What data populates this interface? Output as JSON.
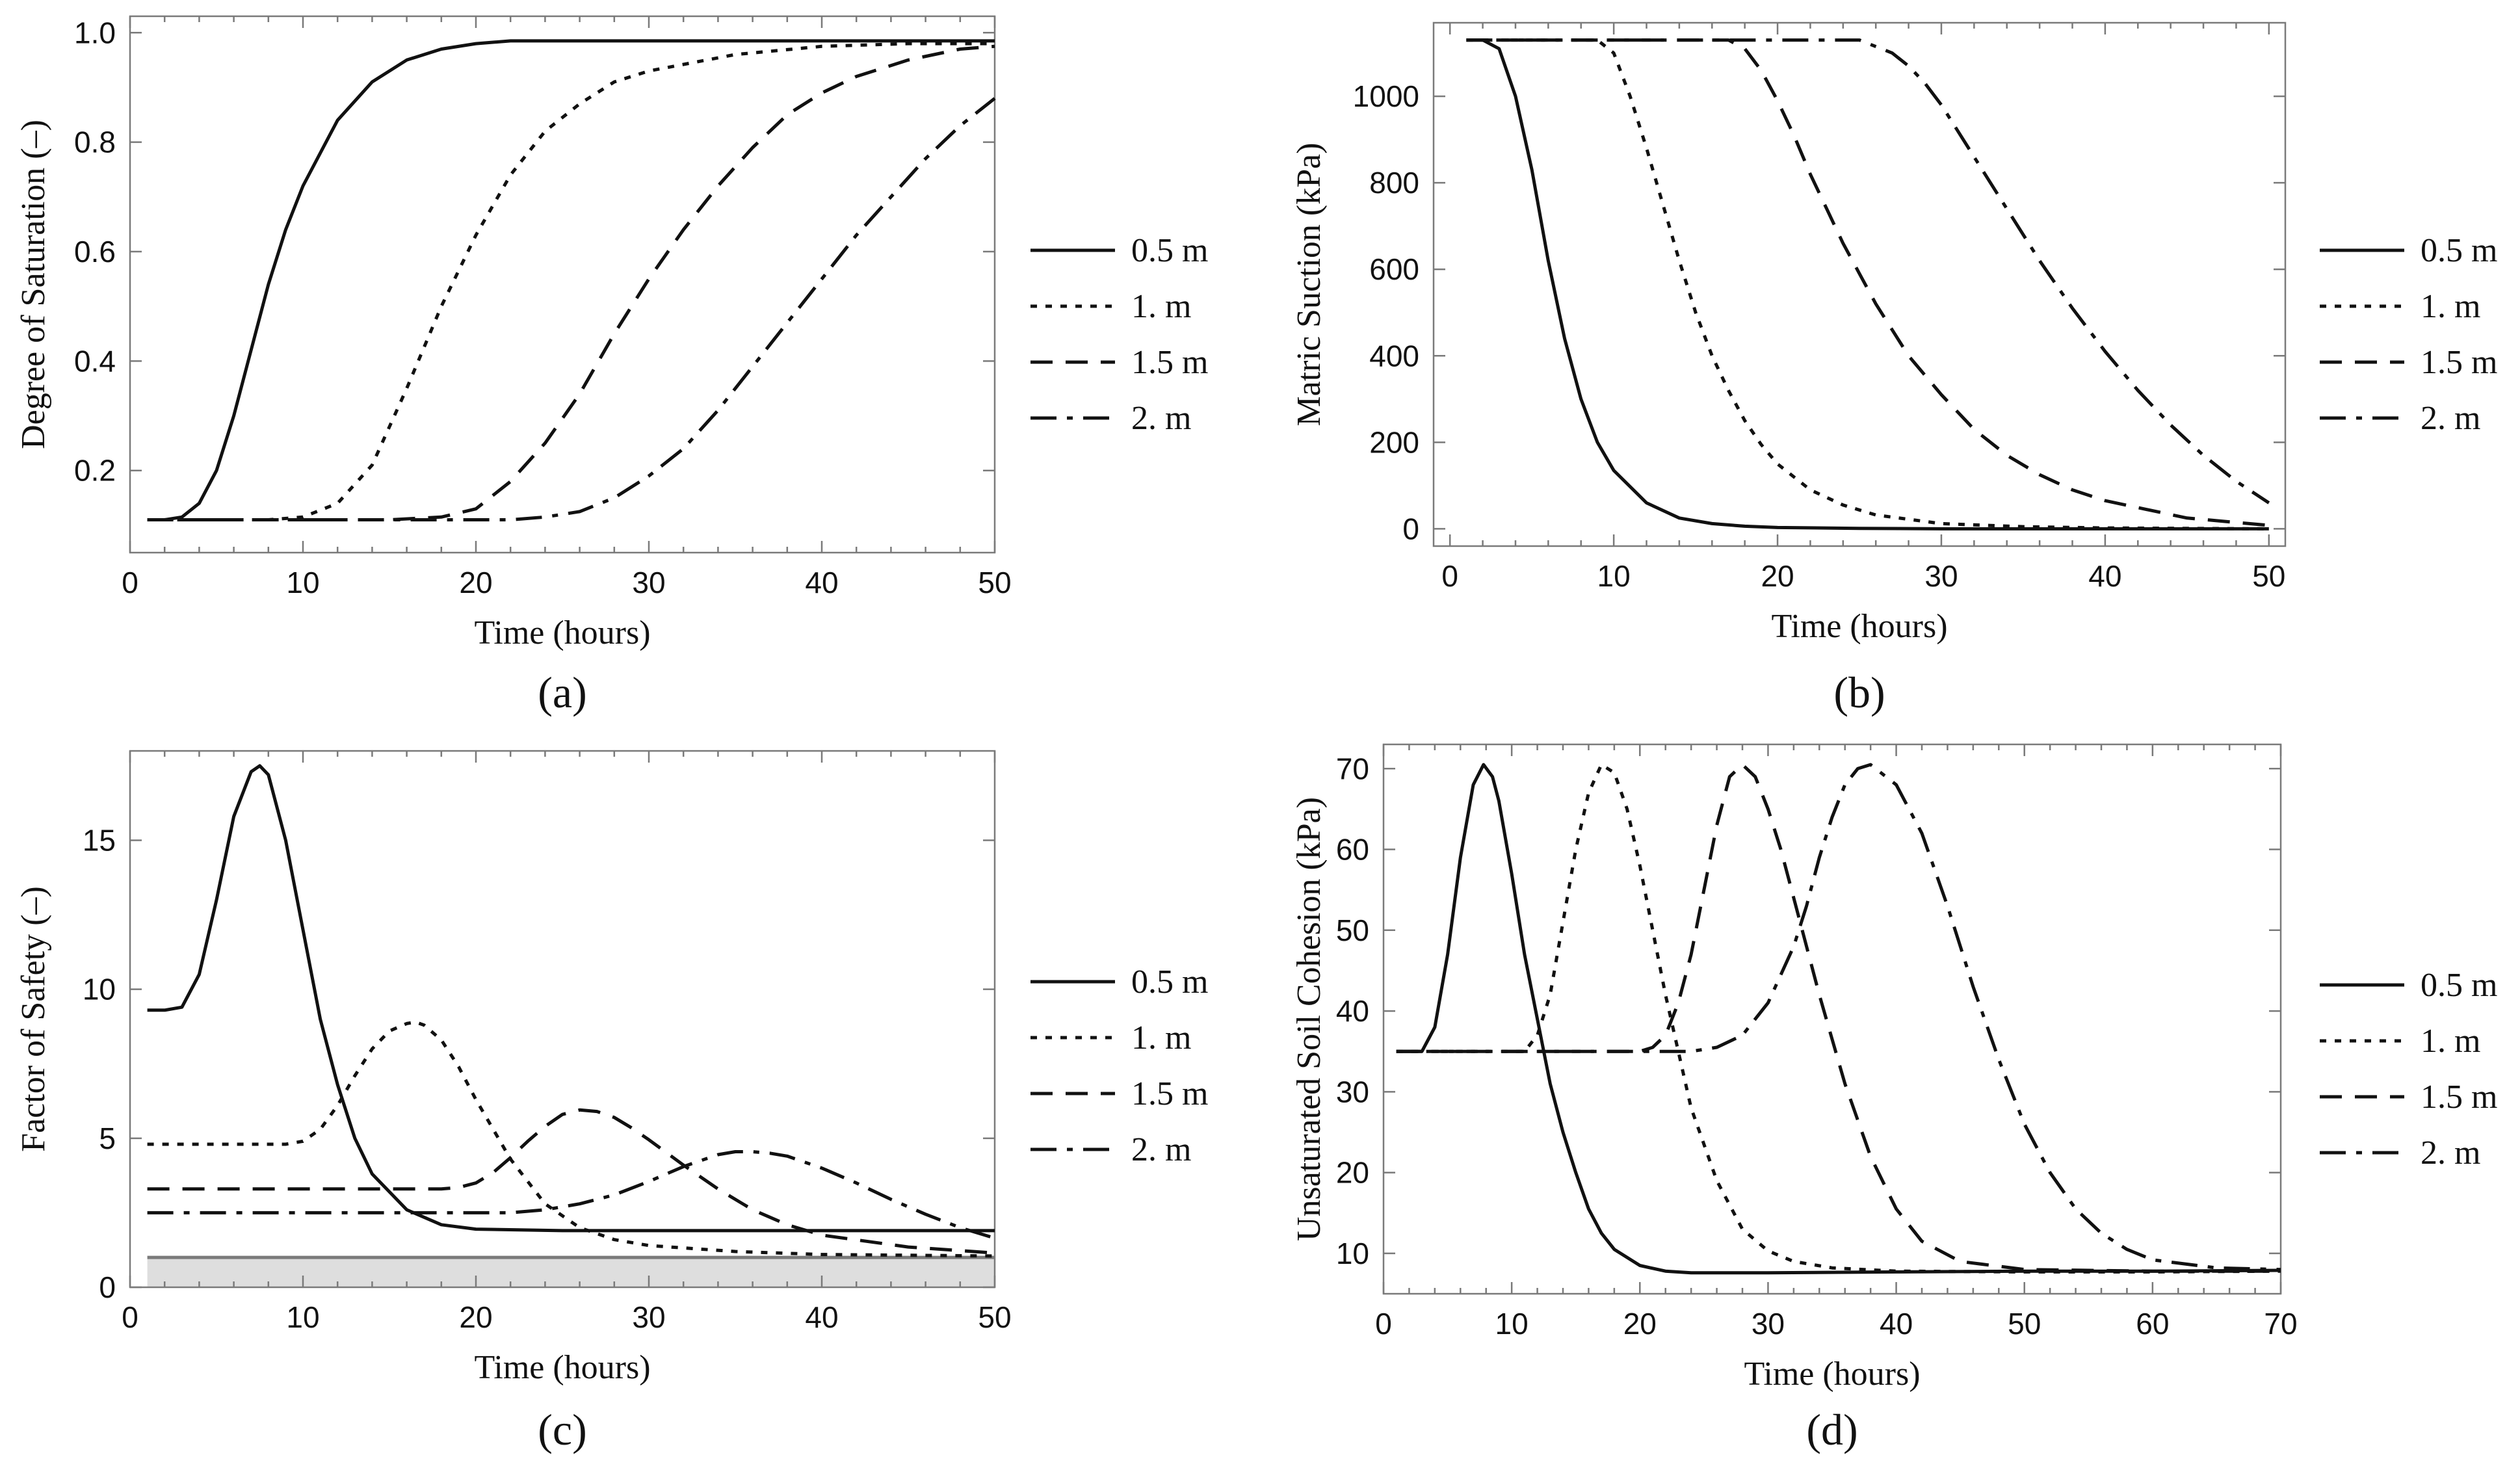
{
  "chart_data": [
    {
      "type": "line",
      "panel_label": "(a)",
      "xlabel": "Time (hours)",
      "ylabel": "Degree of Saturation (–)",
      "xlim": [
        0,
        50
      ],
      "ylim": [
        0.05,
        1.03
      ],
      "x_ticks": [
        "0",
        "10",
        "20",
        "30",
        "40",
        "50"
      ],
      "y_ticks": [
        {
          "v": 0.2,
          "label": "0.2"
        },
        {
          "v": 0.4,
          "label": "0.4"
        },
        {
          "v": 0.6,
          "label": "0.6"
        },
        {
          "v": 0.8,
          "label": "0.8"
        },
        {
          "v": 1.0,
          "label": "1.0"
        }
      ],
      "legend_position": "right",
      "series": [
        {
          "name": "0.5 m",
          "dash": "solid",
          "x": [
            1,
            2,
            3,
            4,
            5,
            6,
            7,
            8,
            9,
            10,
            12,
            14,
            16,
            18,
            20,
            22,
            25,
            30,
            40,
            50
          ],
          "values": [
            0.11,
            0.11,
            0.115,
            0.14,
            0.2,
            0.3,
            0.42,
            0.54,
            0.64,
            0.72,
            0.84,
            0.91,
            0.95,
            0.97,
            0.98,
            0.985,
            0.985,
            0.985,
            0.985,
            0.985
          ]
        },
        {
          "name": "1. m",
          "dash": "dot",
          "x": [
            1,
            8,
            10,
            12,
            14,
            16,
            18,
            20,
            22,
            24,
            26,
            28,
            30,
            35,
            40,
            45,
            50
          ],
          "values": [
            0.11,
            0.11,
            0.115,
            0.14,
            0.21,
            0.35,
            0.5,
            0.63,
            0.74,
            0.82,
            0.87,
            0.91,
            0.93,
            0.96,
            0.975,
            0.98,
            0.98
          ]
        },
        {
          "name": "1.5 m",
          "dash": "dash",
          "x": [
            1,
            15,
            18,
            20,
            22,
            24,
            26,
            28,
            30,
            32,
            34,
            36,
            38,
            40,
            42,
            45,
            48,
            50
          ],
          "values": [
            0.11,
            0.11,
            0.115,
            0.13,
            0.18,
            0.25,
            0.34,
            0.45,
            0.55,
            0.64,
            0.72,
            0.79,
            0.85,
            0.89,
            0.92,
            0.95,
            0.97,
            0.975
          ]
        },
        {
          "name": "2. m",
          "dash": "dashdot",
          "x": [
            1,
            22,
            24,
            26,
            28,
            30,
            32,
            34,
            36,
            38,
            40,
            42,
            44,
            46,
            48,
            50
          ],
          "values": [
            0.11,
            0.11,
            0.115,
            0.125,
            0.15,
            0.19,
            0.24,
            0.31,
            0.39,
            0.47,
            0.55,
            0.63,
            0.7,
            0.77,
            0.83,
            0.88
          ]
        }
      ]
    },
    {
      "type": "line",
      "panel_label": "(b)",
      "xlabel": "Time (hours)",
      "ylabel": "Matric Suction (kPa)",
      "xlim": [
        -1,
        51
      ],
      "ylim": [
        -40,
        1170
      ],
      "x_ticks": [
        "0",
        "10",
        "20",
        "30",
        "40",
        "50"
      ],
      "y_ticks": [
        {
          "v": 0,
          "label": "0"
        },
        {
          "v": 200,
          "label": "200"
        },
        {
          "v": 400,
          "label": "400"
        },
        {
          "v": 600,
          "label": "600"
        },
        {
          "v": 800,
          "label": "800"
        },
        {
          "v": 1000,
          "label": "1000"
        }
      ],
      "legend_position": "right",
      "series": [
        {
          "name": "0.5 m",
          "dash": "solid",
          "x": [
            1,
            2,
            3,
            4,
            5,
            6,
            7,
            8,
            9,
            10,
            12,
            14,
            16,
            18,
            20,
            25,
            30,
            40,
            50
          ],
          "values": [
            1130,
            1130,
            1110,
            1000,
            830,
            620,
            440,
            300,
            200,
            135,
            60,
            25,
            12,
            6,
            3,
            1,
            0,
            0,
            0
          ]
        },
        {
          "name": "1. m",
          "dash": "dot",
          "x": [
            1,
            9,
            10,
            11,
            12,
            13,
            14,
            15,
            16,
            17,
            18,
            19,
            20,
            22,
            24,
            26,
            30,
            35,
            40,
            50
          ],
          "values": [
            1130,
            1130,
            1100,
            1000,
            880,
            750,
            620,
            500,
            400,
            320,
            250,
            195,
            150,
            90,
            55,
            32,
            12,
            5,
            2,
            0
          ]
        },
        {
          "name": "1.5 m",
          "dash": "dash",
          "x": [
            1,
            17,
            18,
            19,
            20,
            21,
            22,
            23,
            24,
            25,
            26,
            27,
            28,
            30,
            32,
            34,
            36,
            38,
            40,
            45,
            50
          ],
          "values": [
            1130,
            1130,
            1110,
            1060,
            990,
            910,
            820,
            740,
            660,
            590,
            520,
            460,
            400,
            310,
            230,
            170,
            125,
            90,
            65,
            25,
            8
          ]
        },
        {
          "name": "2. m",
          "dash": "dashdot",
          "x": [
            1,
            25,
            27,
            28,
            29,
            30,
            31,
            32,
            33,
            34,
            35,
            36,
            38,
            40,
            42,
            44,
            46,
            48,
            50
          ],
          "values": [
            1130,
            1130,
            1100,
            1070,
            1030,
            980,
            920,
            860,
            800,
            740,
            680,
            620,
            510,
            410,
            320,
            240,
            170,
            110,
            60
          ]
        }
      ]
    },
    {
      "type": "line",
      "panel_label": "(c)",
      "xlabel": "Time (hours)",
      "ylabel": "Factor of Safety  (–)",
      "xlim": [
        0,
        50
      ],
      "ylim": [
        0,
        18
      ],
      "x_ticks": [
        "0",
        "10",
        "20",
        "30",
        "40",
        "50"
      ],
      "y_ticks": [
        {
          "v": 0,
          "label": "0"
        },
        {
          "v": 5,
          "label": "5"
        },
        {
          "v": 10,
          "label": "10"
        },
        {
          "v": 15,
          "label": "15"
        }
      ],
      "threshold": 1.0,
      "legend_position": "right",
      "series": [
        {
          "name": "0.5 m",
          "dash": "solid",
          "x": [
            1,
            2,
            3,
            4,
            5,
            6,
            7,
            7.5,
            8,
            9,
            10,
            11,
            12,
            13,
            14,
            16,
            18,
            20,
            25,
            30,
            40,
            50
          ],
          "values": [
            9.3,
            9.3,
            9.4,
            10.5,
            13,
            15.8,
            17.3,
            17.5,
            17.2,
            15,
            12,
            9,
            6.8,
            5,
            3.8,
            2.6,
            2.1,
            1.95,
            1.9,
            1.9,
            1.9,
            1.9
          ]
        },
        {
          "name": "1. m",
          "dash": "dot",
          "x": [
            1,
            9,
            10,
            11,
            12,
            13,
            14,
            15,
            16,
            16.5,
            17,
            18,
            19,
            20,
            22,
            24,
            26,
            28,
            30,
            35,
            40,
            50
          ],
          "values": [
            4.8,
            4.8,
            4.9,
            5.3,
            6.1,
            7.1,
            8,
            8.6,
            8.85,
            8.9,
            8.8,
            8.3,
            7.4,
            6.3,
            4.3,
            2.8,
            2,
            1.6,
            1.4,
            1.2,
            1.1,
            1.05
          ]
        },
        {
          "name": "1.5 m",
          "dash": "dash",
          "x": [
            1,
            18,
            19,
            20,
            21,
            22,
            23,
            24,
            25,
            26,
            27,
            28,
            29,
            30,
            32,
            34,
            36,
            38,
            40,
            45,
            50
          ],
          "values": [
            3.3,
            3.3,
            3.35,
            3.5,
            3.85,
            4.35,
            4.9,
            5.4,
            5.8,
            5.95,
            5.9,
            5.7,
            5.35,
            4.95,
            4.1,
            3.3,
            2.6,
            2.1,
            1.75,
            1.35,
            1.15
          ]
        },
        {
          "name": "2. m",
          "dash": "dashdot",
          "x": [
            1,
            22,
            24,
            26,
            28,
            30,
            32,
            34,
            35,
            36,
            37,
            38,
            40,
            42,
            44,
            46,
            48,
            50
          ],
          "values": [
            2.5,
            2.5,
            2.6,
            2.8,
            3.1,
            3.55,
            4.05,
            4.45,
            4.55,
            4.55,
            4.5,
            4.4,
            4,
            3.5,
            2.95,
            2.45,
            2,
            1.65
          ]
        }
      ]
    },
    {
      "type": "line",
      "panel_label": "(d)",
      "xlabel": "Time (hours)",
      "ylabel": "Unsaturated  Soil  Cohesion  (kPa)",
      "xlim": [
        0,
        70
      ],
      "ylim": [
        5,
        73
      ],
      "x_ticks": [
        "0",
        "10",
        "20",
        "30",
        "40",
        "50",
        "60",
        "70"
      ],
      "y_ticks": [
        {
          "v": 10,
          "label": "10"
        },
        {
          "v": 20,
          "label": "20"
        },
        {
          "v": 30,
          "label": "30"
        },
        {
          "v": 40,
          "label": "40"
        },
        {
          "v": 50,
          "label": "50"
        },
        {
          "v": 60,
          "label": "60"
        },
        {
          "v": 70,
          "label": "70"
        }
      ],
      "legend_position": "right",
      "series": [
        {
          "name": "0.5 m",
          "dash": "solid",
          "x": [
            1,
            3,
            4,
            5,
            6,
            7,
            7.8,
            8.5,
            9,
            10,
            11,
            12,
            13,
            14,
            15,
            16,
            17,
            18,
            20,
            22,
            24,
            30,
            40,
            50,
            60,
            70
          ],
          "values": [
            35,
            35,
            38,
            47,
            59,
            68,
            70.5,
            69,
            66,
            57,
            47,
            39,
            31,
            25,
            20,
            15.5,
            12.5,
            10.5,
            8.5,
            7.8,
            7.6,
            7.6,
            7.7,
            7.8,
            7.8,
            7.9
          ]
        },
        {
          "name": "1. m",
          "dash": "dot",
          "x": [
            1,
            11,
            12,
            13,
            14,
            15,
            16,
            17,
            18,
            19,
            20,
            21,
            22,
            23,
            24,
            26,
            28,
            30,
            32,
            35,
            40,
            50,
            60,
            70
          ],
          "values": [
            35,
            35,
            37,
            42,
            51,
            60,
            67,
            70.5,
            69.5,
            65,
            58,
            50,
            42,
            35,
            28,
            19,
            13,
            10.3,
            9,
            8.2,
            7.8,
            7.7,
            7.7,
            7.8
          ]
        },
        {
          "name": "1.5 m",
          "dash": "dash",
          "x": [
            1,
            20,
            21,
            22,
            23,
            24,
            25,
            26,
            27,
            28,
            29,
            30,
            31,
            32,
            34,
            36,
            38,
            40,
            42,
            45,
            50,
            55,
            60,
            70
          ],
          "values": [
            35,
            35,
            35.5,
            37,
            41,
            47,
            55,
            63,
            69,
            70.5,
            69,
            65,
            60,
            54,
            42,
            31,
            22,
            15.5,
            11.5,
            9,
            8,
            7.9,
            7.8,
            7.8
          ]
        },
        {
          "name": "2. m",
          "dash": "dashdot",
          "x": [
            1,
            24,
            26,
            28,
            30,
            32,
            33,
            34,
            35,
            36,
            37,
            38,
            40,
            42,
            44,
            46,
            48,
            50,
            52,
            54,
            56,
            58,
            60,
            65,
            70
          ],
          "values": [
            35,
            35,
            35.5,
            37,
            41,
            48,
            53,
            59,
            64,
            68,
            70,
            70.5,
            68,
            62,
            53,
            43,
            34,
            26,
            20,
            15.5,
            12.5,
            10.5,
            9.2,
            8.2,
            8
          ]
        }
      ]
    }
  ]
}
